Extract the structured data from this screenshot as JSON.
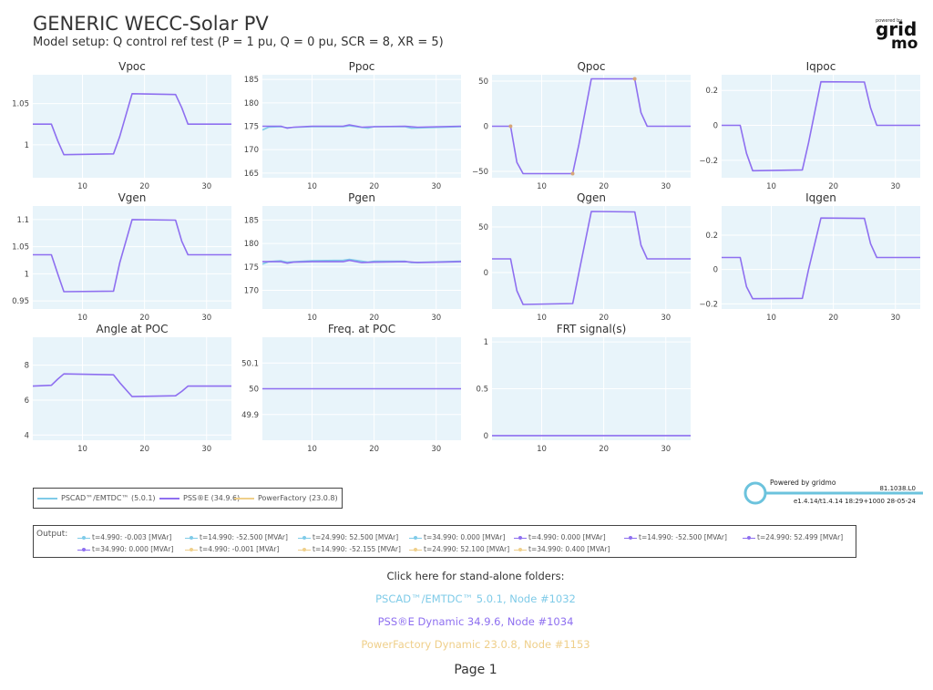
{
  "header": {
    "title": "GENERIC WECC-Solar PV",
    "subtitle": "Model setup: Q control ref test (P = 1 pu, Q = 0 pu, SCR =  8, XR =  5)"
  },
  "logo": {
    "small": "powered by",
    "main": "grid",
    "bottom": "mo"
  },
  "colors": {
    "pscad": "#7fcbe8",
    "psse": "#8e6ff0",
    "pf": "#efcf8a",
    "plot_bg": "#e8f4fa",
    "grid": "#ffffff",
    "marker": "#d6a679"
  },
  "chart_data": [
    {
      "type": "line",
      "title": "Vpoc",
      "xlim": [
        2,
        34
      ],
      "ylim": [
        0.96,
        1.085
      ],
      "xticks": [
        10,
        20,
        30
      ],
      "yticks": [
        1,
        1.05
      ],
      "ytick_labels": [
        "1",
        "1.05"
      ],
      "series": [
        {
          "name": "PSS®E (34.9.6)",
          "x": [
            2,
            5,
            6,
            7,
            15,
            16,
            18,
            25,
            26,
            27,
            34
          ],
          "y": [
            1.025,
            1.025,
            1.005,
            0.988,
            0.989,
            1.01,
            1.062,
            1.061,
            1.045,
            1.025,
            1.025
          ]
        }
      ]
    },
    {
      "type": "line",
      "title": "Ppoc",
      "xlim": [
        2,
        34
      ],
      "ylim": [
        164,
        186
      ],
      "xticks": [
        10,
        20,
        30
      ],
      "yticks": [
        165,
        170,
        175,
        180,
        185
      ],
      "ytick_labels": [
        "165",
        "170",
        "175",
        "180",
        "185"
      ],
      "series": [
        {
          "name": "PSCAD™/EMTDC™ (5.0.1)",
          "x": [
            2,
            3,
            5,
            6,
            10,
            15,
            16,
            19,
            20,
            25,
            26,
            34
          ],
          "y": [
            174.2,
            174.8,
            174.9,
            174.7,
            174.9,
            174.9,
            175.1,
            174.6,
            174.9,
            174.9,
            174.6,
            174.9
          ]
        },
        {
          "name": "PSS®E (34.9.6)",
          "x": [
            2,
            5,
            6,
            7,
            10,
            15,
            16,
            18,
            20,
            25,
            27,
            34
          ],
          "y": [
            175.0,
            175.0,
            174.6,
            174.8,
            175.0,
            175.0,
            175.3,
            174.8,
            174.9,
            175.0,
            174.8,
            175.0
          ]
        }
      ]
    },
    {
      "type": "line",
      "title": "Qpoc",
      "xlim": [
        2,
        34
      ],
      "ylim": [
        -57,
        57
      ],
      "xticks": [
        10,
        20,
        30
      ],
      "yticks": [
        -50,
        0,
        50
      ],
      "ytick_labels": [
        "−50",
        "0",
        "50"
      ],
      "series": [
        {
          "name": "PSS®E (34.9.6)",
          "x": [
            2,
            4.99,
            6,
            7,
            14.99,
            16,
            18,
            24.99,
            26,
            27,
            34
          ],
          "y": [
            0,
            0,
            -40,
            -52.5,
            -52.5,
            -20,
            52.5,
            52.5,
            15,
            0,
            0
          ]
        }
      ],
      "markers": [
        {
          "x": 4.99,
          "y": 0
        },
        {
          "x": 14.99,
          "y": -52.5
        },
        {
          "x": 24.99,
          "y": 52.5
        }
      ]
    },
    {
      "type": "line",
      "title": "Iqpoc",
      "xlim": [
        2,
        34
      ],
      "ylim": [
        -0.3,
        0.29
      ],
      "xticks": [
        10,
        20,
        30
      ],
      "yticks": [
        -0.2,
        0,
        0.2
      ],
      "ytick_labels": [
        "−0.2",
        "0",
        "0.2"
      ],
      "series": [
        {
          "name": "PSS®E (34.9.6)",
          "x": [
            2,
            5,
            6,
            7,
            15,
            16,
            18,
            25,
            26,
            27,
            34
          ],
          "y": [
            0,
            0,
            -0.16,
            -0.26,
            -0.255,
            -0.1,
            0.25,
            0.248,
            0.1,
            0,
            0
          ]
        }
      ]
    },
    {
      "type": "line",
      "title": "Vgen",
      "xlim": [
        2,
        34
      ],
      "ylim": [
        0.935,
        1.125
      ],
      "xticks": [
        10,
        20,
        30
      ],
      "yticks": [
        0.95,
        1,
        1.05,
        1.1
      ],
      "ytick_labels": [
        "0.95",
        "1",
        "1.05",
        "1.1"
      ],
      "series": [
        {
          "name": "PSS®E (34.9.6)",
          "x": [
            2,
            5,
            6,
            7,
            15,
            16,
            18,
            25,
            26,
            27,
            34
          ],
          "y": [
            1.035,
            1.035,
            1.0,
            0.967,
            0.968,
            1.02,
            1.1,
            1.099,
            1.06,
            1.035,
            1.035
          ]
        }
      ]
    },
    {
      "type": "line",
      "title": "Pgen",
      "xlim": [
        2,
        34
      ],
      "ylim": [
        166,
        188
      ],
      "xticks": [
        10,
        20,
        30
      ],
      "yticks": [
        170,
        175,
        180,
        185
      ],
      "ytick_labels": [
        "170",
        "175",
        "180",
        "185"
      ],
      "series": [
        {
          "name": "PSCAD™/EMTDC™ (5.0.1)",
          "x": [
            2,
            3,
            5,
            6,
            10,
            15,
            16,
            19,
            20,
            25,
            26,
            34
          ],
          "y": [
            175.6,
            176.1,
            176.3,
            176.0,
            176.3,
            176.4,
            176.6,
            176.0,
            176.2,
            176.2,
            175.9,
            176.2
          ]
        },
        {
          "name": "PSS®E (34.9.6)",
          "x": [
            2,
            5,
            6,
            7,
            10,
            15,
            16,
            18,
            20,
            25,
            27,
            34
          ],
          "y": [
            176.1,
            176.1,
            175.8,
            176.0,
            176.1,
            176.1,
            176.4,
            175.9,
            176.0,
            176.1,
            175.9,
            176.1
          ]
        }
      ]
    },
    {
      "type": "line",
      "title": "Qgen",
      "xlim": [
        2,
        34
      ],
      "ylim": [
        -40,
        73
      ],
      "xticks": [
        10,
        20,
        30
      ],
      "yticks": [
        0,
        50
      ],
      "ytick_labels": [
        "0",
        "50"
      ],
      "series": [
        {
          "name": "PSS®E (34.9.6)",
          "x": [
            2,
            5,
            6,
            7,
            15,
            16,
            18,
            25,
            26,
            27,
            34
          ],
          "y": [
            15,
            15,
            -20,
            -35,
            -34,
            0,
            67,
            66.5,
            30,
            15,
            15
          ]
        }
      ]
    },
    {
      "type": "line",
      "title": "Iqgen",
      "xlim": [
        2,
        34
      ],
      "ylim": [
        -0.23,
        0.37
      ],
      "xticks": [
        10,
        20,
        30
      ],
      "yticks": [
        -0.2,
        0,
        0.2
      ],
      "ytick_labels": [
        "−0.2",
        "0",
        "0.2"
      ],
      "series": [
        {
          "name": "PSS®E (34.9.6)",
          "x": [
            2,
            5,
            6,
            7,
            15,
            16,
            18,
            25,
            26,
            27,
            34
          ],
          "y": [
            0.07,
            0.07,
            -0.1,
            -0.17,
            -0.168,
            0.0,
            0.3,
            0.298,
            0.15,
            0.07,
            0.07
          ]
        }
      ]
    },
    {
      "type": "line",
      "title": "Angle at POC",
      "xlim": [
        2,
        34
      ],
      "ylim": [
        3.7,
        9.6
      ],
      "xticks": [
        10,
        20,
        30
      ],
      "yticks": [
        4,
        6,
        8
      ],
      "ytick_labels": [
        "4",
        "6",
        "8"
      ],
      "series": [
        {
          "name": "PSS®E (34.9.6)",
          "x": [
            2,
            5,
            6,
            7,
            15,
            16,
            18,
            25,
            26,
            27,
            34
          ],
          "y": [
            6.8,
            6.85,
            7.2,
            7.5,
            7.45,
            7.0,
            6.2,
            6.25,
            6.5,
            6.8,
            6.8
          ]
        }
      ]
    },
    {
      "type": "line",
      "title": "Freq. at POC",
      "xlim": [
        2,
        34
      ],
      "ylim": [
        49.8,
        50.2
      ],
      "xticks": [
        10,
        20,
        30
      ],
      "yticks": [
        49.9,
        50,
        50.1
      ],
      "ytick_labels": [
        "49.9",
        "50",
        "50.1"
      ],
      "series": [
        {
          "name": "PSS®E (34.9.6)",
          "x": [
            2,
            34
          ],
          "y": [
            50,
            50
          ]
        }
      ]
    },
    {
      "type": "line",
      "title": "FRT signal(s)",
      "xlim": [
        2,
        34
      ],
      "ylim": [
        -0.05,
        1.05
      ],
      "xticks": [
        10,
        20,
        30
      ],
      "yticks": [
        0,
        0.5,
        1
      ],
      "ytick_labels": [
        "0",
        "0.5",
        "1"
      ],
      "series": [
        {
          "name": "PSS®E (34.9.6)",
          "x": [
            2,
            34
          ],
          "y": [
            0,
            0
          ]
        }
      ]
    }
  ],
  "legend": [
    {
      "label": "PSCAD™/EMTDC™ (5.0.1)",
      "color": "#7fcbe8"
    },
    {
      "label": "PSS®E (34.9.6)",
      "color": "#8e6ff0"
    },
    {
      "label": "PowerFactory (23.0.8)",
      "color": "#efcf8a"
    }
  ],
  "slider": {
    "powered": "Powered by gridmo",
    "version": "81.1038.L0",
    "build": "e1.4.14/t1.4.14 18:29+1000 28-05-24"
  },
  "output": {
    "label": "Output:",
    "row1": [
      {
        "text": "t=4.990: -0.003 [MVAr]",
        "color": "#7fcbe8"
      },
      {
        "text": "t=14.990: -52.500 [MVAr]",
        "color": "#7fcbe8"
      },
      {
        "text": "t=24.990: 52.500 [MVAr]",
        "color": "#7fcbe8"
      },
      {
        "text": "t=34.990: 0.000 [MVAr]",
        "color": "#7fcbe8"
      },
      {
        "text": "t=4.990: 0.000 [MVAr]",
        "color": "#8e6ff0"
      },
      {
        "text": "t=14.990: -52.500 [MVAr]",
        "color": "#8e6ff0"
      },
      {
        "text": "t=24.990: 52.499 [MVAr]",
        "color": "#8e6ff0"
      }
    ],
    "row2": [
      {
        "text": "t=34.990: 0.000 [MVAr]",
        "color": "#8e6ff0"
      },
      {
        "text": "t=4.990: -0.001 [MVAr]",
        "color": "#efcf8a"
      },
      {
        "text": "t=14.990: -52.155 [MVAr]",
        "color": "#efcf8a"
      },
      {
        "text": "t=24.990: 52.100 [MVAr]",
        "color": "#efcf8a"
      },
      {
        "text": "t=34.990: 0.400 [MVAr]",
        "color": "#efcf8a"
      }
    ]
  },
  "links": {
    "heading": "Click here for stand-alone folders:",
    "items": [
      {
        "label": "PSCAD™/EMTDC™ 5.0.1, Node #1032",
        "color": "#7fcbe8"
      },
      {
        "label": "PSS®E Dynamic 34.9.6, Node #1034",
        "color": "#8e6ff0"
      },
      {
        "label": "PowerFactory Dynamic 23.0.8, Node #1153",
        "color": "#efcf8a"
      }
    ]
  },
  "page": "Page 1"
}
